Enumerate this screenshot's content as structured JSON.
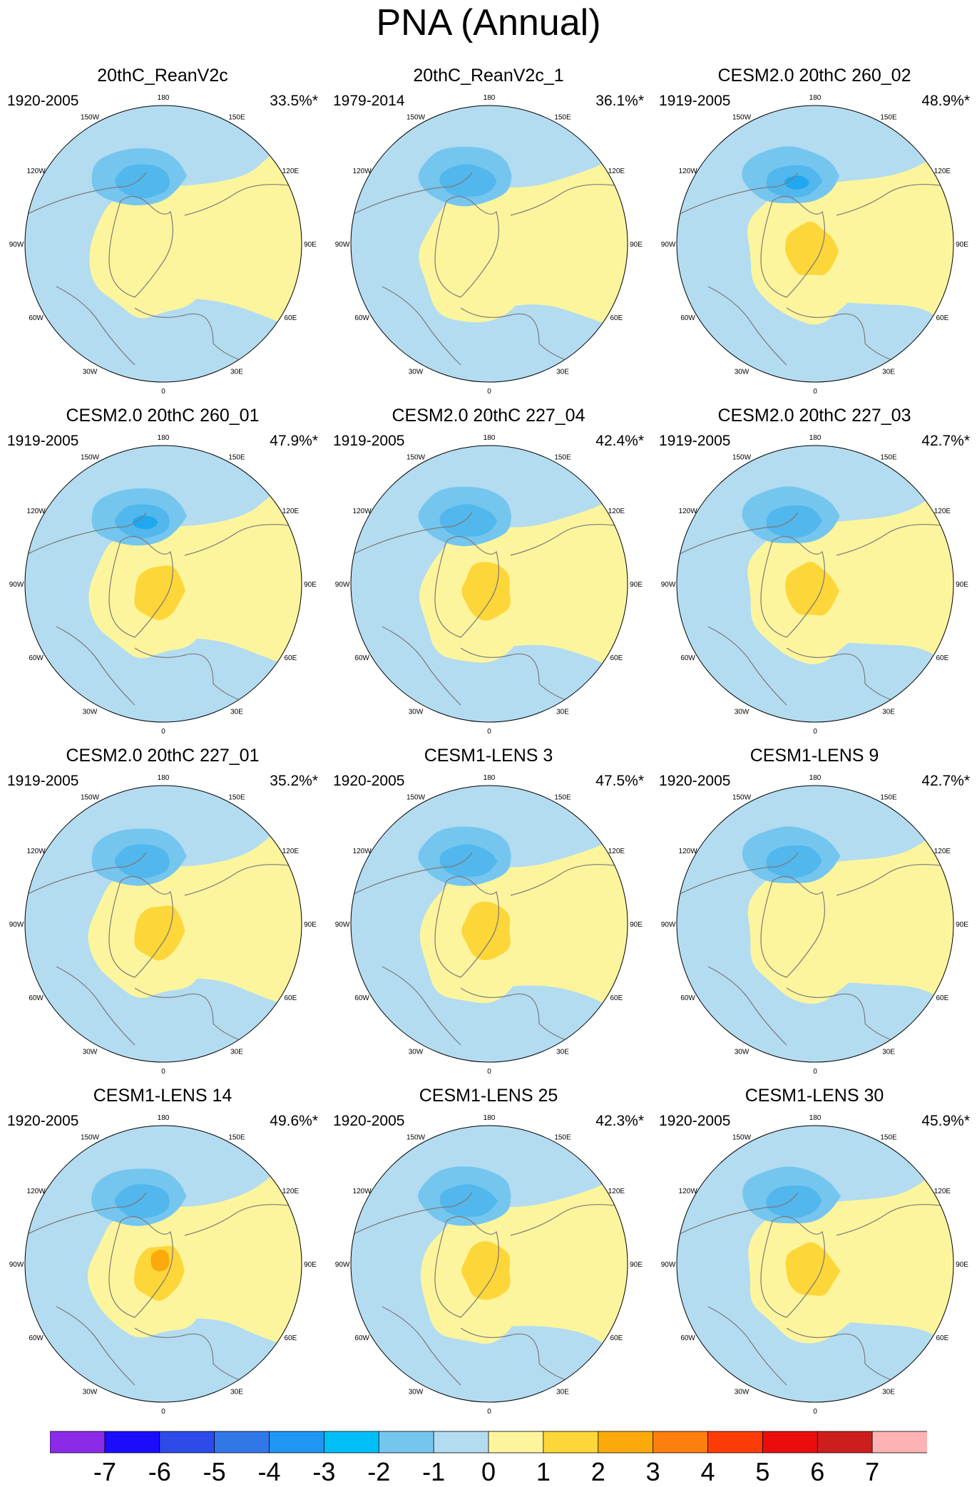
{
  "title": "PNA (Annual)",
  "panels": [
    {
      "title": "20thC_ReanV2c",
      "years": "1920-2005",
      "variance": "33.5%*",
      "max_pos": 1,
      "max_neg": 3
    },
    {
      "title": "20thC_ReanV2c_1",
      "years": "1979-2014",
      "variance": "36.1%*",
      "max_pos": 1,
      "max_neg": 3
    },
    {
      "title": "CESM2.0 20thC 260_02",
      "years": "1919-2005",
      "variance": "48.9%*",
      "max_pos": 2,
      "max_neg": 4
    },
    {
      "title": "CESM2.0 20thC 260_01",
      "years": "1919-2005",
      "variance": "47.9%*",
      "max_pos": 2,
      "max_neg": 4
    },
    {
      "title": "CESM2.0 20thC 227_04",
      "years": "1919-2005",
      "variance": "42.4%*",
      "max_pos": 2,
      "max_neg": 3
    },
    {
      "title": "CESM2.0 20thC 227_03",
      "years": "1919-2005",
      "variance": "42.7%*",
      "max_pos": 2,
      "max_neg": 3
    },
    {
      "title": "CESM2.0 20thC 227_01",
      "years": "1919-2005",
      "variance": "35.2%*",
      "max_pos": 2,
      "max_neg": 3
    },
    {
      "title": "CESM1-LENS 3",
      "years": "1920-2005",
      "variance": "47.5%*",
      "max_pos": 2,
      "max_neg": 3
    },
    {
      "title": "CESM1-LENS 9",
      "years": "1920-2005",
      "variance": "42.7%*",
      "max_pos": 1,
      "max_neg": 3
    },
    {
      "title": "CESM1-LENS 14",
      "years": "1920-2005",
      "variance": "49.6%*",
      "max_pos": 3,
      "max_neg": 3
    },
    {
      "title": "CESM1-LENS 25",
      "years": "1920-2005",
      "variance": "42.3%*",
      "max_pos": 2,
      "max_neg": 3
    },
    {
      "title": "CESM1-LENS 30",
      "years": "1920-2005",
      "variance": "45.9%*",
      "max_pos": 2,
      "max_neg": 3
    }
  ],
  "longitude_labels": [
    "180",
    "150E",
    "120E",
    "90E",
    "60E",
    "30E",
    "0",
    "30W",
    "60W",
    "90W",
    "120W",
    "150W"
  ],
  "colorbar": {
    "labels": [
      "-7",
      "-6",
      "-5",
      "-4",
      "-3",
      "-2",
      "-1",
      "0",
      "1",
      "2",
      "3",
      "4",
      "5",
      "6",
      "7"
    ],
    "colors": [
      "#8b2be8",
      "#1a0dfc",
      "#2c4be8",
      "#3277e8",
      "#1f96f3",
      "#00bff7",
      "#75c6ef",
      "#b3dcf1",
      "#fdf59d",
      "#fdd639",
      "#fca90c",
      "#fb800e",
      "#fc3c06",
      "#ea0d0d",
      "#cd1e1e",
      "#fdb3b3"
    ]
  },
  "palette": {
    "neg1": "#b3dcf1",
    "neg2": "#75c6ef",
    "neg3": "#52b7ec",
    "neg4": "#1fa8ef",
    "pos1": "#fdf59d",
    "pos2": "#fdd639",
    "pos3": "#fca90c",
    "coast": "#7a7a7a"
  }
}
